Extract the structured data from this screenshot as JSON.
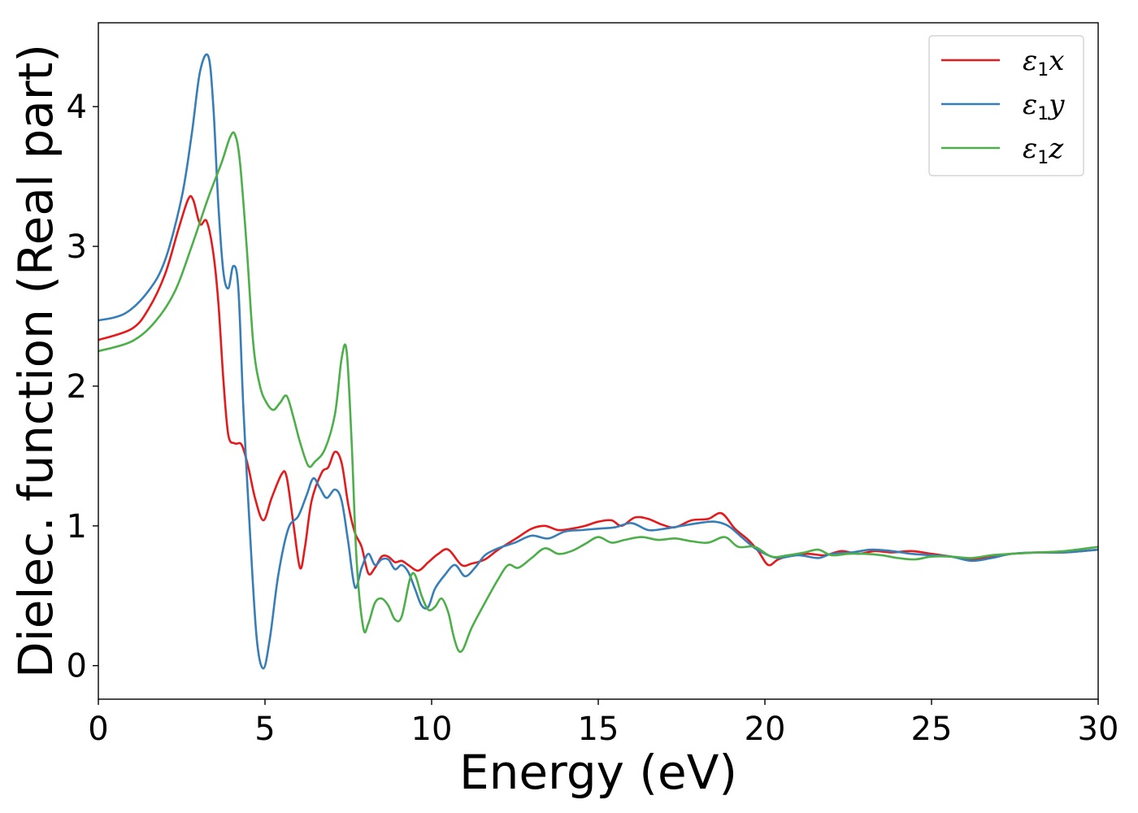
{
  "chart_data": {
    "type": "line",
    "title": "",
    "xlabel": "Energy (eV)",
    "ylabel": "Dielec. function (Real part)",
    "xlim": [
      0,
      30
    ],
    "ylim": [
      -0.24,
      4.6
    ],
    "xticks": [
      0,
      5,
      10,
      15,
      20,
      25,
      30
    ],
    "yticks": [
      0,
      1,
      2,
      3,
      4
    ],
    "grid": false,
    "legend_position": "top-right",
    "series": [
      {
        "name": "ε1x",
        "legend_symbol": "ε",
        "legend_subscript": "1",
        "legend_suffix": "x",
        "color": "#e41a1c",
        "points": [
          [
            0,
            2.33
          ],
          [
            1,
            2.41
          ],
          [
            1.5,
            2.55
          ],
          [
            2,
            2.8
          ],
          [
            2.4,
            3.12
          ],
          [
            2.7,
            3.34
          ],
          [
            2.85,
            3.33
          ],
          [
            3.05,
            3.16
          ],
          [
            3.25,
            3.18
          ],
          [
            3.45,
            2.95
          ],
          [
            3.6,
            2.6
          ],
          [
            3.75,
            2.05
          ],
          [
            3.9,
            1.65
          ],
          [
            4.1,
            1.59
          ],
          [
            4.3,
            1.58
          ],
          [
            4.5,
            1.42
          ],
          [
            4.7,
            1.2
          ],
          [
            4.95,
            1.04
          ],
          [
            5.2,
            1.2
          ],
          [
            5.5,
            1.37
          ],
          [
            5.65,
            1.35
          ],
          [
            5.85,
            1.02
          ],
          [
            6.05,
            0.7
          ],
          [
            6.2,
            0.85
          ],
          [
            6.4,
            1.18
          ],
          [
            6.7,
            1.38
          ],
          [
            6.9,
            1.42
          ],
          [
            7.1,
            1.53
          ],
          [
            7.3,
            1.45
          ],
          [
            7.5,
            1.15
          ],
          [
            7.7,
            0.95
          ],
          [
            7.9,
            0.85
          ],
          [
            8.1,
            0.66
          ],
          [
            8.3,
            0.7
          ],
          [
            8.5,
            0.78
          ],
          [
            8.7,
            0.78
          ],
          [
            8.9,
            0.74
          ],
          [
            9.1,
            0.75
          ],
          [
            9.3,
            0.72
          ],
          [
            9.6,
            0.68
          ],
          [
            9.9,
            0.74
          ],
          [
            10.2,
            0.8
          ],
          [
            10.5,
            0.83
          ],
          [
            10.9,
            0.72
          ],
          [
            11.2,
            0.73
          ],
          [
            11.6,
            0.76
          ],
          [
            12,
            0.83
          ],
          [
            12.6,
            0.92
          ],
          [
            13,
            0.98
          ],
          [
            13.4,
            1.0
          ],
          [
            13.8,
            0.97
          ],
          [
            14.2,
            0.98
          ],
          [
            14.6,
            1.0
          ],
          [
            15,
            1.03
          ],
          [
            15.4,
            1.04
          ],
          [
            15.7,
            1.0
          ],
          [
            16.1,
            1.06
          ],
          [
            16.5,
            1.05
          ],
          [
            16.9,
            1.01
          ],
          [
            17.3,
            0.99
          ],
          [
            17.8,
            1.04
          ],
          [
            18.3,
            1.05
          ],
          [
            18.7,
            1.09
          ],
          [
            19.1,
            0.98
          ],
          [
            19.5,
            0.9
          ],
          [
            19.8,
            0.82
          ],
          [
            20.1,
            0.72
          ],
          [
            20.4,
            0.76
          ],
          [
            20.8,
            0.79
          ],
          [
            21.3,
            0.8
          ],
          [
            21.8,
            0.79
          ],
          [
            22.3,
            0.82
          ],
          [
            22.8,
            0.8
          ],
          [
            23.3,
            0.82
          ],
          [
            23.8,
            0.81
          ],
          [
            24.4,
            0.82
          ],
          [
            25,
            0.8
          ],
          [
            25.6,
            0.78
          ],
          [
            26.2,
            0.76
          ],
          [
            26.8,
            0.78
          ],
          [
            27.4,
            0.8
          ],
          [
            28.2,
            0.81
          ],
          [
            29,
            0.81
          ],
          [
            30,
            0.83
          ]
        ]
      },
      {
        "name": "ε1y",
        "legend_symbol": "ε",
        "legend_subscript": "1",
        "legend_suffix": "y",
        "color": "#377eb8",
        "points": [
          [
            0,
            2.47
          ],
          [
            0.8,
            2.52
          ],
          [
            1.5,
            2.68
          ],
          [
            2,
            2.9
          ],
          [
            2.5,
            3.35
          ],
          [
            2.8,
            3.8
          ],
          [
            3.05,
            4.25
          ],
          [
            3.3,
            4.36
          ],
          [
            3.45,
            4.0
          ],
          [
            3.6,
            3.3
          ],
          [
            3.75,
            2.82
          ],
          [
            3.9,
            2.7
          ],
          [
            4.05,
            2.86
          ],
          [
            4.2,
            2.7
          ],
          [
            4.35,
            1.85
          ],
          [
            4.55,
            0.95
          ],
          [
            4.75,
            0.2
          ],
          [
            4.95,
            -0.02
          ],
          [
            5.15,
            0.2
          ],
          [
            5.4,
            0.65
          ],
          [
            5.7,
            0.98
          ],
          [
            6.0,
            1.07
          ],
          [
            6.25,
            1.22
          ],
          [
            6.45,
            1.34
          ],
          [
            6.65,
            1.27
          ],
          [
            6.85,
            1.2
          ],
          [
            7.1,
            1.26
          ],
          [
            7.3,
            1.18
          ],
          [
            7.5,
            0.88
          ],
          [
            7.7,
            0.56
          ],
          [
            7.9,
            0.7
          ],
          [
            8.1,
            0.8
          ],
          [
            8.3,
            0.72
          ],
          [
            8.5,
            0.76
          ],
          [
            8.7,
            0.76
          ],
          [
            8.9,
            0.69
          ],
          [
            9.1,
            0.72
          ],
          [
            9.3,
            0.67
          ],
          [
            9.5,
            0.55
          ],
          [
            9.7,
            0.43
          ],
          [
            9.9,
            0.42
          ],
          [
            10.1,
            0.55
          ],
          [
            10.4,
            0.65
          ],
          [
            10.7,
            0.72
          ],
          [
            11,
            0.64
          ],
          [
            11.3,
            0.7
          ],
          [
            11.6,
            0.79
          ],
          [
            12,
            0.84
          ],
          [
            12.5,
            0.88
          ],
          [
            13,
            0.93
          ],
          [
            13.5,
            0.91
          ],
          [
            14,
            0.96
          ],
          [
            14.5,
            0.97
          ],
          [
            15,
            0.98
          ],
          [
            15.5,
            0.99
          ],
          [
            16,
            1.02
          ],
          [
            16.5,
            0.97
          ],
          [
            17,
            0.98
          ],
          [
            17.5,
            1.0
          ],
          [
            18,
            1.02
          ],
          [
            18.5,
            1.03
          ],
          [
            18.9,
            1.0
          ],
          [
            19.3,
            0.92
          ],
          [
            19.7,
            0.84
          ],
          [
            20,
            0.8
          ],
          [
            20.4,
            0.77
          ],
          [
            21,
            0.79
          ],
          [
            21.6,
            0.77
          ],
          [
            22,
            0.8
          ],
          [
            22.6,
            0.81
          ],
          [
            23.2,
            0.83
          ],
          [
            23.8,
            0.82
          ],
          [
            24.4,
            0.8
          ],
          [
            25,
            0.79
          ],
          [
            25.6,
            0.78
          ],
          [
            26.2,
            0.75
          ],
          [
            26.8,
            0.77
          ],
          [
            27.4,
            0.8
          ],
          [
            28.2,
            0.81
          ],
          [
            29,
            0.81
          ],
          [
            30,
            0.83
          ]
        ]
      },
      {
        "name": "ε1z",
        "legend_symbol": "ε",
        "legend_subscript": "1",
        "legend_suffix": "z",
        "color": "#4daf4a",
        "points": [
          [
            0,
            2.25
          ],
          [
            1,
            2.32
          ],
          [
            1.7,
            2.46
          ],
          [
            2.3,
            2.68
          ],
          [
            2.8,
            3.0
          ],
          [
            3.3,
            3.35
          ],
          [
            3.7,
            3.6
          ],
          [
            3.95,
            3.78
          ],
          [
            4.1,
            3.8
          ],
          [
            4.25,
            3.6
          ],
          [
            4.45,
            3.0
          ],
          [
            4.65,
            2.3
          ],
          [
            4.85,
            2.0
          ],
          [
            5.05,
            1.88
          ],
          [
            5.25,
            1.83
          ],
          [
            5.45,
            1.88
          ],
          [
            5.65,
            1.93
          ],
          [
            5.85,
            1.78
          ],
          [
            6.05,
            1.6
          ],
          [
            6.3,
            1.43
          ],
          [
            6.5,
            1.46
          ],
          [
            6.8,
            1.55
          ],
          [
            7.1,
            1.8
          ],
          [
            7.3,
            2.2
          ],
          [
            7.45,
            2.25
          ],
          [
            7.6,
            1.6
          ],
          [
            7.75,
            0.75
          ],
          [
            7.95,
            0.27
          ],
          [
            8.1,
            0.3
          ],
          [
            8.3,
            0.45
          ],
          [
            8.5,
            0.48
          ],
          [
            8.7,
            0.43
          ],
          [
            8.9,
            0.33
          ],
          [
            9.1,
            0.35
          ],
          [
            9.35,
            0.62
          ],
          [
            9.5,
            0.65
          ],
          [
            9.7,
            0.5
          ],
          [
            9.9,
            0.4
          ],
          [
            10.1,
            0.42
          ],
          [
            10.3,
            0.48
          ],
          [
            10.5,
            0.38
          ],
          [
            10.65,
            0.22
          ],
          [
            10.8,
            0.11
          ],
          [
            10.95,
            0.12
          ],
          [
            11.2,
            0.27
          ],
          [
            11.6,
            0.45
          ],
          [
            12,
            0.62
          ],
          [
            12.3,
            0.72
          ],
          [
            12.6,
            0.7
          ],
          [
            13,
            0.77
          ],
          [
            13.4,
            0.84
          ],
          [
            13.8,
            0.8
          ],
          [
            14.2,
            0.82
          ],
          [
            14.6,
            0.87
          ],
          [
            15,
            0.92
          ],
          [
            15.4,
            0.88
          ],
          [
            15.8,
            0.9
          ],
          [
            16.3,
            0.92
          ],
          [
            16.8,
            0.9
          ],
          [
            17.3,
            0.91
          ],
          [
            17.8,
            0.89
          ],
          [
            18.3,
            0.88
          ],
          [
            18.8,
            0.92
          ],
          [
            19.2,
            0.85
          ],
          [
            19.7,
            0.85
          ],
          [
            20.2,
            0.78
          ],
          [
            20.7,
            0.79
          ],
          [
            21.2,
            0.81
          ],
          [
            21.6,
            0.83
          ],
          [
            22,
            0.79
          ],
          [
            22.5,
            0.8
          ],
          [
            23,
            0.8
          ],
          [
            23.5,
            0.79
          ],
          [
            24,
            0.77
          ],
          [
            24.5,
            0.76
          ],
          [
            25,
            0.78
          ],
          [
            25.6,
            0.78
          ],
          [
            26.2,
            0.77
          ],
          [
            26.8,
            0.79
          ],
          [
            27.4,
            0.8
          ],
          [
            28.2,
            0.81
          ],
          [
            29,
            0.82
          ],
          [
            30,
            0.85
          ]
        ]
      }
    ]
  }
}
